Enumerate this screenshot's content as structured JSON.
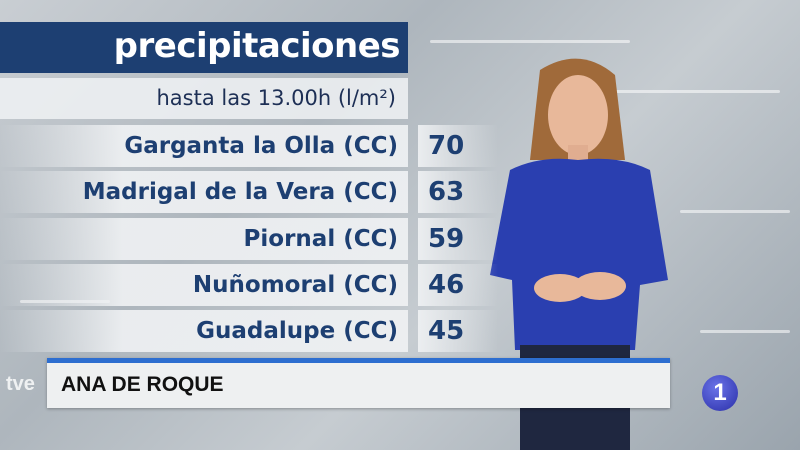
{
  "graphic": {
    "title": "precipitaciones",
    "subtitle": "hasta las 13.00h (l/m²)",
    "rows": [
      {
        "place": "Garganta la Olla (CC)",
        "value": "70"
      },
      {
        "place": "Madrigal de la Vera (CC)",
        "value": "63"
      },
      {
        "place": "Piornal (CC)",
        "value": "59"
      },
      {
        "place": "Nuñomoral (CC)",
        "value": "46"
      },
      {
        "place": "Guadalupe (CC)",
        "value": "45"
      }
    ]
  },
  "lower_third": {
    "presenter": "ANA DE ROQUE"
  },
  "logos": {
    "watermark": "tve",
    "channel": "1"
  },
  "colors": {
    "title_bg": "#1d3f72",
    "accent": "#2d6ed0"
  }
}
